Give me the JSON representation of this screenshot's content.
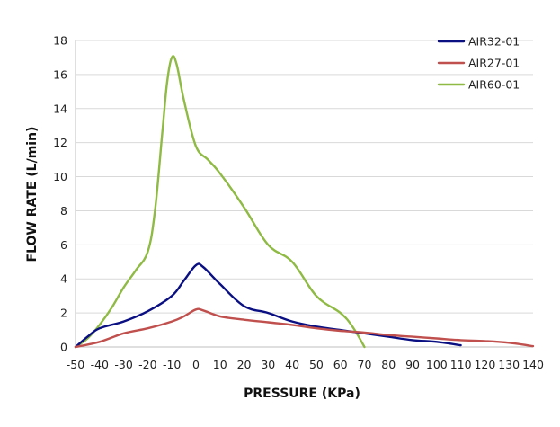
{
  "chart_data": {
    "type": "line",
    "xlabel": "PRESSURE (KPa)",
    "ylabel": "FLOW RATE (L/min)",
    "xlim": [
      -50,
      140
    ],
    "ylim": [
      0,
      18
    ],
    "x_ticks": [
      -50,
      -40,
      -30,
      -20,
      -10,
      0,
      10,
      20,
      30,
      40,
      50,
      60,
      70,
      80,
      90,
      100,
      110,
      120,
      130,
      140
    ],
    "y_ticks": [
      0,
      2,
      4,
      6,
      8,
      10,
      12,
      14,
      16,
      18
    ],
    "grid": "horizontal",
    "legend_position": "top-right",
    "series": [
      {
        "name": "AIR32-01",
        "color": "#0a0f82",
        "points": [
          [
            -50,
            0
          ],
          [
            -45,
            0.6
          ],
          [
            -40,
            1.1
          ],
          [
            -30,
            1.5
          ],
          [
            -20,
            2.1
          ],
          [
            -10,
            3.0
          ],
          [
            -5,
            3.9
          ],
          [
            0,
            4.8
          ],
          [
            3,
            4.7
          ],
          [
            10,
            3.7
          ],
          [
            20,
            2.4
          ],
          [
            30,
            2.0
          ],
          [
            40,
            1.5
          ],
          [
            50,
            1.2
          ],
          [
            60,
            1.0
          ],
          [
            70,
            0.8
          ],
          [
            80,
            0.6
          ],
          [
            90,
            0.4
          ],
          [
            100,
            0.3
          ],
          [
            110,
            0.1
          ]
        ]
      },
      {
        "name": "AIR27-01",
        "color": "#c0504d",
        "points": [
          [
            -50,
            0
          ],
          [
            -40,
            0.3
          ],
          [
            -30,
            0.8
          ],
          [
            -20,
            1.1
          ],
          [
            -10,
            1.5
          ],
          [
            -5,
            1.8
          ],
          [
            0,
            2.2
          ],
          [
            3,
            2.15
          ],
          [
            10,
            1.8
          ],
          [
            20,
            1.6
          ],
          [
            30,
            1.45
          ],
          [
            40,
            1.3
          ],
          [
            50,
            1.1
          ],
          [
            60,
            0.95
          ],
          [
            70,
            0.85
          ],
          [
            80,
            0.7
          ],
          [
            90,
            0.6
          ],
          [
            100,
            0.5
          ],
          [
            110,
            0.4
          ],
          [
            120,
            0.35
          ],
          [
            130,
            0.25
          ],
          [
            140,
            0.05
          ]
        ]
      },
      {
        "name": "AIR60-01",
        "color": "#8fba44",
        "points": [
          [
            -50,
            0
          ],
          [
            -45,
            0.5
          ],
          [
            -40,
            1.3
          ],
          [
            -35,
            2.3
          ],
          [
            -30,
            3.5
          ],
          [
            -25,
            4.5
          ],
          [
            -20,
            5.6
          ],
          [
            -17,
            8.0
          ],
          [
            -14,
            12.5
          ],
          [
            -12,
            15.5
          ],
          [
            -10,
            17.0
          ],
          [
            -8,
            16.6
          ],
          [
            -5,
            14.5
          ],
          [
            0,
            11.8
          ],
          [
            5,
            11.0
          ],
          [
            10,
            10.2
          ],
          [
            20,
            8.2
          ],
          [
            30,
            6.0
          ],
          [
            40,
            5.0
          ],
          [
            50,
            3.0
          ],
          [
            60,
            2.0
          ],
          [
            65,
            1.2
          ],
          [
            70,
            0
          ]
        ]
      }
    ]
  }
}
